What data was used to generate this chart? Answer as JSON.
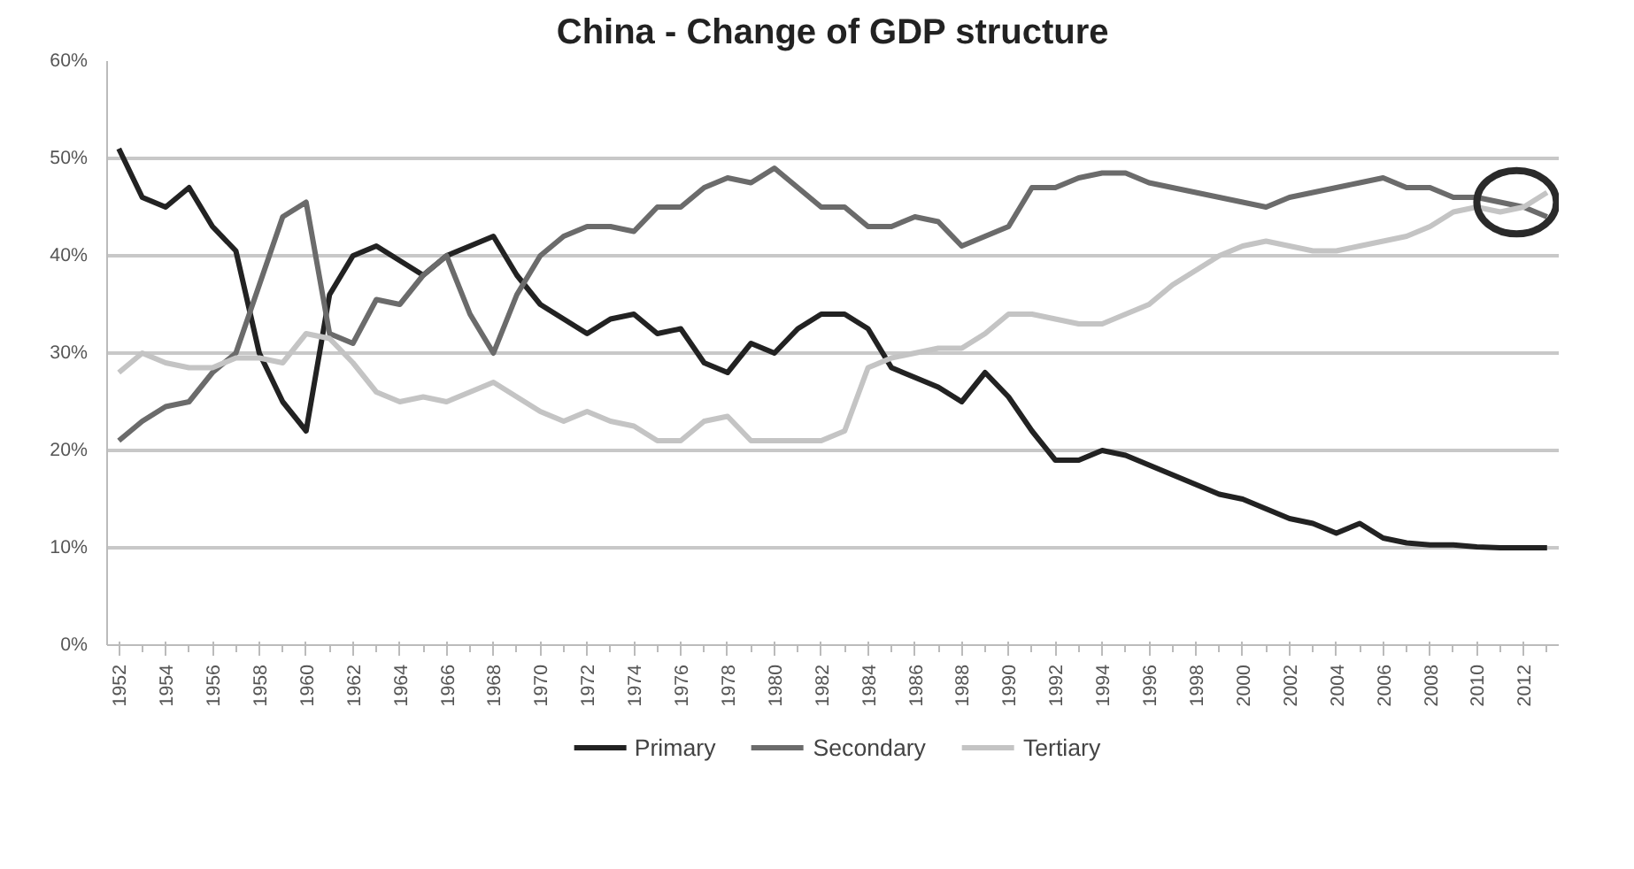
{
  "chart_data": {
    "type": "line",
    "title": "China - Change of GDP structure",
    "x": [
      1952,
      1953,
      1954,
      1955,
      1956,
      1957,
      1958,
      1959,
      1960,
      1961,
      1962,
      1963,
      1964,
      1965,
      1966,
      1967,
      1968,
      1969,
      1970,
      1971,
      1972,
      1973,
      1974,
      1975,
      1976,
      1977,
      1978,
      1979,
      1980,
      1981,
      1982,
      1983,
      1984,
      1985,
      1986,
      1987,
      1988,
      1989,
      1990,
      1991,
      1992,
      1993,
      1994,
      1995,
      1996,
      1997,
      1998,
      1999,
      2000,
      2001,
      2002,
      2003,
      2004,
      2005,
      2006,
      2007,
      2008,
      2009,
      2010,
      2011,
      2012,
      2013
    ],
    "series": [
      {
        "name": "Primary",
        "color": "#222222",
        "values": [
          51,
          46,
          45,
          47,
          43,
          40.5,
          30,
          25,
          22,
          36,
          40,
          41,
          39.5,
          38,
          40,
          41,
          42,
          38,
          35,
          33.5,
          32,
          33.5,
          34,
          32,
          32.5,
          29,
          28,
          31,
          30,
          32.5,
          34,
          34,
          32.5,
          28.5,
          27.5,
          26.5,
          25,
          28,
          25.5,
          22,
          19,
          19,
          20,
          19.5,
          18.5,
          17.5,
          16.5,
          15.5,
          15,
          14,
          13,
          12.5,
          11.5,
          12.5,
          11,
          10.5,
          10.3,
          10.3,
          10.1,
          10,
          10,
          10
        ]
      },
      {
        "name": "Secondary",
        "color": "#6b6b6b",
        "values": [
          21,
          23,
          24.5,
          25,
          28,
          30,
          37,
          44,
          45.5,
          32,
          31,
          35.5,
          35,
          38,
          40,
          34,
          30,
          36,
          40,
          42,
          43,
          43,
          42.5,
          45,
          45,
          47,
          48,
          47.5,
          49,
          47,
          45,
          45,
          43,
          43,
          44,
          43.5,
          41,
          42,
          43,
          47,
          47,
          48,
          48.5,
          48.5,
          47.5,
          47,
          46.5,
          46,
          45.5,
          45,
          46,
          46.5,
          47,
          47.5,
          48,
          47,
          47,
          46,
          46,
          45.5,
          45,
          44
        ]
      },
      {
        "name": "Tertiary",
        "color": "#c4c4c4",
        "values": [
          28,
          30,
          29,
          28.5,
          28.5,
          29.5,
          29.5,
          29,
          32,
          31.5,
          29,
          26,
          25,
          25.5,
          25,
          26,
          27,
          25.5,
          24,
          23,
          24,
          23,
          22.5,
          21,
          21,
          23,
          23.5,
          21,
          21,
          21,
          21,
          22,
          28.5,
          29.5,
          30,
          30.5,
          30.5,
          32,
          34,
          34,
          33.5,
          33,
          33,
          34,
          35,
          37,
          38.5,
          40,
          41,
          41.5,
          41,
          40.5,
          40.5,
          41,
          41.5,
          42,
          43,
          44.5,
          45,
          44.5,
          45,
          46.5
        ]
      }
    ],
    "xlim": [
      1951.5,
      2013.5
    ],
    "xticks": [
      {
        "value": 1952,
        "label": "1952"
      },
      {
        "value": 1953,
        "label": null
      },
      {
        "value": 1954,
        "label": "1954"
      },
      {
        "value": 1955,
        "label": null
      },
      {
        "value": 1956,
        "label": "1956"
      },
      {
        "value": 1957,
        "label": null
      },
      {
        "value": 1958,
        "label": "1958"
      },
      {
        "value": 1959,
        "label": null
      },
      {
        "value": 1960,
        "label": "1960"
      },
      {
        "value": 1961,
        "label": null
      },
      {
        "value": 1962,
        "label": "1962"
      },
      {
        "value": 1963,
        "label": null
      },
      {
        "value": 1964,
        "label": "1964"
      },
      {
        "value": 1965,
        "label": null
      },
      {
        "value": 1966,
        "label": "1966"
      },
      {
        "value": 1967,
        "label": null
      },
      {
        "value": 1968,
        "label": "1968"
      },
      {
        "value": 1969,
        "label": null
      },
      {
        "value": 1970,
        "label": "1970"
      },
      {
        "value": 1971,
        "label": null
      },
      {
        "value": 1972,
        "label": "1972"
      },
      {
        "value": 1973,
        "label": null
      },
      {
        "value": 1974,
        "label": "1974"
      },
      {
        "value": 1975,
        "label": null
      },
      {
        "value": 1976,
        "label": "1976"
      },
      {
        "value": 1977,
        "label": null
      },
      {
        "value": 1978,
        "label": "1978"
      },
      {
        "value": 1979,
        "label": null
      },
      {
        "value": 1980,
        "label": "1980"
      },
      {
        "value": 1981,
        "label": null
      },
      {
        "value": 1982,
        "label": "1982"
      },
      {
        "value": 1983,
        "label": null
      },
      {
        "value": 1984,
        "label": "1984"
      },
      {
        "value": 1985,
        "label": null
      },
      {
        "value": 1986,
        "label": "1986"
      },
      {
        "value": 1987,
        "label": null
      },
      {
        "value": 1988,
        "label": "1988"
      },
      {
        "value": 1989,
        "label": null
      },
      {
        "value": 1990,
        "label": "1990"
      },
      {
        "value": 1991,
        "label": null
      },
      {
        "value": 1992,
        "label": "1992"
      },
      {
        "value": 1993,
        "label": null
      },
      {
        "value": 1994,
        "label": "1994"
      },
      {
        "value": 1995,
        "label": null
      },
      {
        "value": 1996,
        "label": "1996"
      },
      {
        "value": 1997,
        "label": null
      },
      {
        "value": 1998,
        "label": "1998"
      },
      {
        "value": 1999,
        "label": null
      },
      {
        "value": 2000,
        "label": "2000"
      },
      {
        "value": 2001,
        "label": null
      },
      {
        "value": 2002,
        "label": "2002"
      },
      {
        "value": 2003,
        "label": null
      },
      {
        "value": 2004,
        "label": "2004"
      },
      {
        "value": 2005,
        "label": null
      },
      {
        "value": 2006,
        "label": "2006"
      },
      {
        "value": 2007,
        "label": null
      },
      {
        "value": 2008,
        "label": "2008"
      },
      {
        "value": 2009,
        "label": null
      },
      {
        "value": 2010,
        "label": "2010"
      },
      {
        "value": 2011,
        "label": null
      },
      {
        "value": 2012,
        "label": "2012"
      },
      {
        "value": 2013,
        "label": null
      }
    ],
    "ylim": [
      0,
      60
    ],
    "yticks": [
      {
        "value": 0,
        "label": "0%"
      },
      {
        "value": 10,
        "label": "10%"
      },
      {
        "value": 20,
        "label": "20%"
      },
      {
        "value": 30,
        "label": "30%"
      },
      {
        "value": 40,
        "label": "40%"
      },
      {
        "value": 50,
        "label": "50%"
      },
      {
        "value": 60,
        "label": "60%"
      }
    ],
    "grid": "y",
    "legend": "bottom",
    "marker": "none",
    "line_style": "solid"
  }
}
